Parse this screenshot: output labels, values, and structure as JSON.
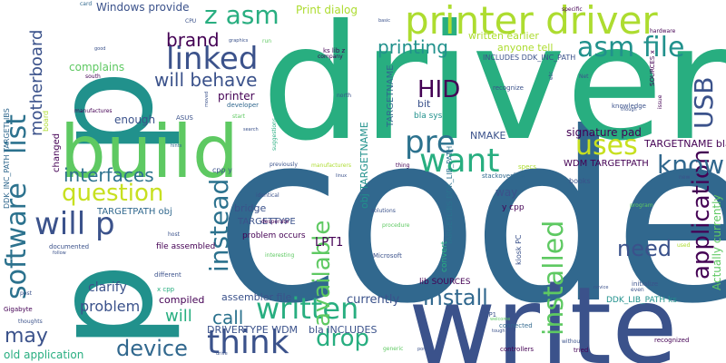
{
  "palette": {
    "background": "#ffffff",
    "purple": "#440154",
    "indigo": "#3b528b",
    "blue": "#31688e",
    "steel": "#2c728e",
    "teal": "#21918c",
    "green": "#28ae80",
    "lime": "#5ec962",
    "yellowgreen": "#addc30",
    "yellow": "#c7e020"
  },
  "words": [
    "code",
    "driver",
    "write",
    "p",
    "build",
    "printer driver",
    "asm",
    "linked",
    "question",
    "software",
    "list",
    "motherboard",
    "will p",
    "think",
    "written",
    "drop",
    "install",
    "installed",
    "application",
    "USB",
    "know",
    "pre",
    "want",
    "uses",
    "available",
    "instead",
    "interfaces",
    "need",
    "asm file",
    "printing",
    "HID",
    "brand",
    "will behave",
    "may",
    "device",
    "call",
    "will",
    "problem",
    "clarify",
    "compiled",
    "Print dialog",
    "Windows provide",
    "z asm",
    "written earlier",
    "anyone tell",
    "INCLUDES DDK_INC_PATH",
    "TARGETNAME",
    "obj TARGETNAME",
    "bit",
    "bla sys",
    "NMAKE",
    "signature pad",
    "TARGETNAME bla",
    "WDM TARGETPATH",
    "TARGETPATH obj",
    "bridge",
    "TARGETTYPE",
    "DRIVERTYPE WDM",
    "bla INCLUDES",
    "currently",
    "LPT1",
    "assembler file",
    "problem occurs",
    "file assembled",
    "lib SOURCES",
    "DDK_LIB_PATH ks",
    "Actually currently",
    "old application",
    "complains",
    "enough",
    "changed",
    "printer",
    "developer",
    "way",
    "y cpp",
    "kiosk PC",
    "convert",
    "TARGETLIBS DDK_LIB_PATH",
    "DDK_INC_PATH TARGETLIBS",
    "board",
    "ks lib z",
    "recognize",
    "stackoverflow",
    "books",
    "x cpp",
    "cpp y",
    "specs",
    "controllers",
    "connected",
    "tried",
    "without",
    "recognized",
    "initialize",
    "knowledge",
    "issue",
    "SOURCES x",
    "hardware",
    "specific",
    "card",
    "good",
    "graphics",
    "run",
    "CPU",
    "basic",
    "company",
    "north",
    "south",
    "manufactures",
    "ASUS",
    "moved",
    "start",
    "search",
    "hints",
    "suggestions",
    "previously",
    "thing",
    "linux",
    "manufacturers",
    "identical",
    "desperate",
    "solutions",
    "procedure",
    "Microsoft",
    "interesting",
    "host",
    "documented",
    "follow",
    "different",
    "post",
    "Gigabyte",
    "thoughts",
    "SP1",
    "welcome",
    "tough",
    "port",
    "generic",
    "drive",
    "program",
    "used",
    "novice",
    "even",
    "new",
    "etc",
    "Net",
    "though"
  ]
}
